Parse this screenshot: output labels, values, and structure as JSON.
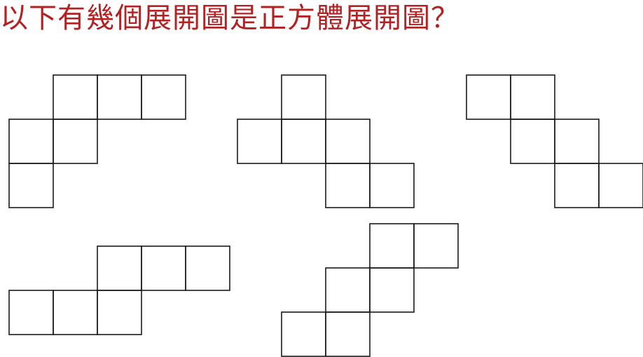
{
  "question": {
    "text": "以下有幾個展開圖是正方體展開圖？",
    "color": "#b22222"
  },
  "nets": [
    {
      "id": "net-1",
      "squares": [
        [
          1,
          0
        ],
        [
          2,
          0
        ],
        [
          3,
          0
        ],
        [
          0,
          1
        ],
        [
          1,
          1
        ],
        [
          0,
          2
        ]
      ]
    },
    {
      "id": "net-2",
      "squares": [
        [
          1,
          0
        ],
        [
          0,
          1
        ],
        [
          1,
          1
        ],
        [
          2,
          1
        ],
        [
          2,
          2
        ],
        [
          3,
          2
        ]
      ]
    },
    {
      "id": "net-3",
      "squares": [
        [
          0,
          0
        ],
        [
          1,
          0
        ],
        [
          1,
          1
        ],
        [
          2,
          1
        ],
        [
          2,
          2
        ],
        [
          3,
          2
        ]
      ]
    },
    {
      "id": "net-4",
      "squares": [
        [
          2,
          0
        ],
        [
          3,
          0
        ],
        [
          4,
          0
        ],
        [
          0,
          1
        ],
        [
          1,
          1
        ],
        [
          2,
          1
        ]
      ]
    },
    {
      "id": "net-5",
      "squares": [
        [
          2,
          0
        ],
        [
          3,
          0
        ],
        [
          1,
          1
        ],
        [
          2,
          1
        ],
        [
          0,
          2
        ],
        [
          1,
          2
        ]
      ]
    }
  ],
  "line_color": "#1a1a1a"
}
